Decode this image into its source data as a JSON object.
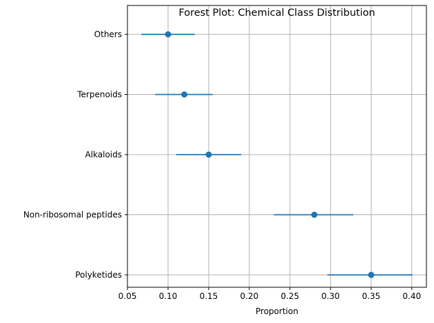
{
  "chart_data": {
    "type": "scatter",
    "subtype": "forest-plot",
    "title": "Forest Plot: Chemical Class Distribution",
    "xlabel": "Proportion",
    "ylabel": "",
    "xlim": [
      0.05,
      0.418
    ],
    "xticks": [
      "0.05",
      "0.10",
      "0.15",
      "0.20",
      "0.25",
      "0.30",
      "0.35",
      "0.40"
    ],
    "grid": true,
    "color": "#1f77b4",
    "categories": [
      "Polyketides",
      "Non-ribosomal peptides",
      "Alkaloids",
      "Terpenoids",
      "Others"
    ],
    "values": [
      0.35,
      0.28,
      0.15,
      0.12,
      0.1
    ],
    "lower": [
      0.296,
      0.23,
      0.11,
      0.084,
      0.067
    ],
    "upper": [
      0.401,
      0.328,
      0.19,
      0.155,
      0.133
    ]
  }
}
